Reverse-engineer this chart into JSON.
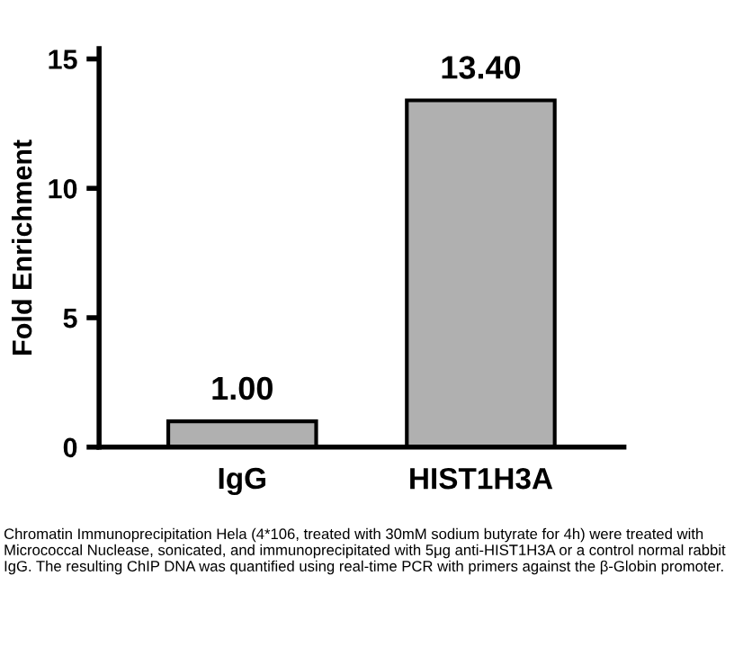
{
  "chart_data": {
    "type": "bar",
    "categories": [
      "IgG",
      "HIST1H3A"
    ],
    "values": [
      1.0,
      13.4
    ],
    "value_labels": [
      "1.00",
      "13.40"
    ],
    "color": "#b0b0b0",
    "ylabel": "Fold Enrichment",
    "ylim": [
      0,
      15.4
    ],
    "yticks": [
      0,
      5,
      10,
      15
    ],
    "grid": false,
    "annotations": [
      "Chromatin Immunoprecipitation Hela (4*106, treated with 30mM sodium butyrate for 4h) were treated with Micrococcal Nuclease, sonicated, and immunoprecipitated with 5μg anti-HIST1H3A or a control normal rabbit IgG. The resulting ChIP DNA was quantified using real-time PCR with primers against the β-Globin promoter."
    ]
  }
}
